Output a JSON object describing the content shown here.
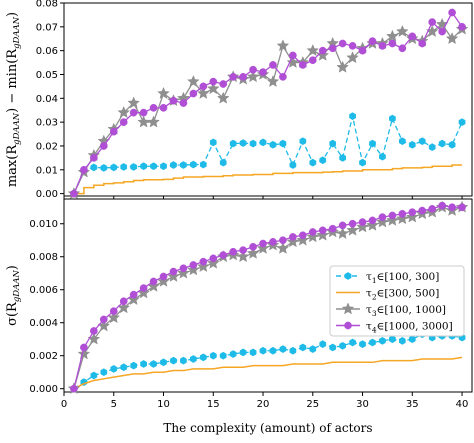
{
  "chart_data": [
    {
      "type": "line",
      "panel": "top",
      "xlabel": "",
      "ylabel_parts": [
        "max(R",
        "gDAAN",
        ") − min(R",
        "gDAAN",
        ")"
      ],
      "xlim": [
        0,
        41
      ],
      "ylim": [
        -0.001,
        0.08
      ],
      "yticks": [
        "0.00",
        "0.01",
        "0.02",
        "0.03",
        "0.04",
        "0.05",
        "0.06",
        "0.07",
        "0.08"
      ],
      "ytick_values": [
        0,
        0.01,
        0.02,
        0.03,
        0.04,
        0.05,
        0.06,
        0.07,
        0.08
      ],
      "x": [
        1,
        2,
        3,
        4,
        5,
        6,
        7,
        8,
        9,
        10,
        11,
        12,
        13,
        14,
        15,
        16,
        17,
        18,
        19,
        20,
        21,
        22,
        23,
        24,
        25,
        26,
        27,
        28,
        29,
        30,
        31,
        32,
        33,
        34,
        35,
        36,
        37,
        38,
        39,
        40
      ],
      "series": [
        {
          "key": "tau1",
          "color": "#1fbbe8",
          "marker": "hexagon",
          "dash": "5,3",
          "values": [
            0.0,
            0.01,
            0.011,
            0.0108,
            0.011,
            0.0112,
            0.0112,
            0.0115,
            0.0115,
            0.0115,
            0.012,
            0.012,
            0.0122,
            0.0122,
            0.0215,
            0.013,
            0.021,
            0.0212,
            0.021,
            0.0215,
            0.0205,
            0.021,
            0.012,
            0.022,
            0.013,
            0.014,
            0.021,
            0.015,
            0.0325,
            0.013,
            0.021,
            0.0155,
            0.0315,
            0.022,
            0.0205,
            0.022,
            0.0195,
            0.021,
            0.0205,
            0.03
          ]
        },
        {
          "key": "tau2",
          "color": "#f5a623",
          "marker": "none",
          "step": true,
          "values": [
            0.0,
            0.0025,
            0.0035,
            0.0042,
            0.0045,
            0.005,
            0.0055,
            0.0058,
            0.0058,
            0.006,
            0.0065,
            0.007,
            0.007,
            0.0072,
            0.0072,
            0.0075,
            0.0078,
            0.0078,
            0.008,
            0.008,
            0.0085,
            0.0085,
            0.0088,
            0.0088,
            0.0088,
            0.009,
            0.0092,
            0.0095,
            0.0095,
            0.01,
            0.01,
            0.01,
            0.0105,
            0.0108,
            0.0108,
            0.011,
            0.0115,
            0.0115,
            0.012,
            0.012
          ]
        },
        {
          "key": "tau3",
          "color": "#8f8f8f",
          "marker": "star",
          "values": [
            0.0,
            0.009,
            0.016,
            0.022,
            0.027,
            0.034,
            0.038,
            0.03,
            0.03,
            0.042,
            0.039,
            0.04,
            0.047,
            0.042,
            0.044,
            0.04,
            0.049,
            0.048,
            0.049,
            0.05,
            0.047,
            0.062,
            0.055,
            0.055,
            0.06,
            0.058,
            0.063,
            0.053,
            0.057,
            0.061,
            0.063,
            0.063,
            0.066,
            0.068,
            0.065,
            0.064,
            0.068,
            0.071,
            0.065,
            0.069
          ]
        },
        {
          "key": "tau4",
          "color": "#b04ed6",
          "marker": "circle",
          "values": [
            0.0,
            0.01,
            0.015,
            0.02,
            0.026,
            0.03,
            0.034,
            0.034,
            0.036,
            0.036,
            0.039,
            0.038,
            0.042,
            0.045,
            0.047,
            0.046,
            0.049,
            0.049,
            0.052,
            0.051,
            0.054,
            0.049,
            0.058,
            0.054,
            0.056,
            0.06,
            0.061,
            0.063,
            0.062,
            0.06,
            0.064,
            0.062,
            0.063,
            0.061,
            0.066,
            0.063,
            0.072,
            0.068,
            0.076,
            0.07
          ]
        }
      ]
    },
    {
      "type": "line",
      "panel": "bottom",
      "xlabel": "The complexity (amount) of actors",
      "ylabel_parts": [
        "σ(R",
        "gDAAN",
        ")"
      ],
      "xlim": [
        0,
        41
      ],
      "ylim": [
        -0.0002,
        0.0115
      ],
      "xticks": [
        "0",
        "5",
        "10",
        "15",
        "20",
        "25",
        "30",
        "35",
        "40"
      ],
      "xtick_values": [
        0,
        5,
        10,
        15,
        20,
        25,
        30,
        35,
        40
      ],
      "yticks": [
        "0.000",
        "0.002",
        "0.004",
        "0.006",
        "0.008",
        "0.010"
      ],
      "ytick_values": [
        0,
        0.002,
        0.004,
        0.006,
        0.008,
        0.01
      ],
      "x": [
        1,
        2,
        3,
        4,
        5,
        6,
        7,
        8,
        9,
        10,
        11,
        12,
        13,
        14,
        15,
        16,
        17,
        18,
        19,
        20,
        21,
        22,
        23,
        24,
        25,
        26,
        27,
        28,
        29,
        30,
        31,
        32,
        33,
        34,
        35,
        36,
        37,
        38,
        39,
        40
      ],
      "series": [
        {
          "key": "tau1",
          "color": "#1fbbe8",
          "marker": "hexagon",
          "dash": "5,3",
          "values": [
            0.0,
            0.0004,
            0.0008,
            0.001,
            0.0012,
            0.0013,
            0.0014,
            0.0015,
            0.0015,
            0.0016,
            0.0017,
            0.0017,
            0.0018,
            0.0019,
            0.002,
            0.002,
            0.0021,
            0.0022,
            0.0022,
            0.0023,
            0.0023,
            0.0024,
            0.0023,
            0.0025,
            0.0024,
            0.0027,
            0.0025,
            0.0026,
            0.0028,
            0.0027,
            0.0028,
            0.0029,
            0.003,
            0.0029,
            0.003,
            0.0033,
            0.0031,
            0.0032,
            0.0032,
            0.0031
          ]
        },
        {
          "key": "tau2",
          "color": "#f5a623",
          "marker": "none",
          "values": [
            0.0,
            0.0003,
            0.0005,
            0.0006,
            0.0007,
            0.0008,
            0.0009,
            0.0009,
            0.001,
            0.001,
            0.0011,
            0.0011,
            0.0012,
            0.0012,
            0.0012,
            0.0013,
            0.0013,
            0.0013,
            0.0014,
            0.0014,
            0.0014,
            0.0014,
            0.0015,
            0.0015,
            0.0015,
            0.0015,
            0.0016,
            0.0016,
            0.0016,
            0.0016,
            0.0016,
            0.0017,
            0.0017,
            0.0017,
            0.0017,
            0.0018,
            0.0018,
            0.0018,
            0.0018,
            0.0019
          ]
        },
        {
          "key": "tau3",
          "color": "#8f8f8f",
          "marker": "star",
          "values": [
            0.0,
            0.0021,
            0.003,
            0.0038,
            0.0043,
            0.0049,
            0.0054,
            0.0058,
            0.0062,
            0.0065,
            0.0068,
            0.007,
            0.0072,
            0.0074,
            0.0076,
            0.008,
            0.0081,
            0.008,
            0.0082,
            0.0085,
            0.0087,
            0.0085,
            0.0089,
            0.009,
            0.0092,
            0.0093,
            0.0095,
            0.0094,
            0.0096,
            0.0098,
            0.0099,
            0.0101,
            0.0102,
            0.0103,
            0.0104,
            0.0106,
            0.0107,
            0.011,
            0.0108,
            0.011
          ]
        },
        {
          "key": "tau4",
          "color": "#b04ed6",
          "marker": "circle",
          "values": [
            0.0,
            0.0025,
            0.0035,
            0.0042,
            0.0047,
            0.0053,
            0.0057,
            0.0061,
            0.0065,
            0.0068,
            0.0071,
            0.0073,
            0.0075,
            0.0077,
            0.0079,
            0.0081,
            0.0083,
            0.0084,
            0.0086,
            0.0088,
            0.0089,
            0.009,
            0.0092,
            0.0093,
            0.0095,
            0.0096,
            0.0097,
            0.0099,
            0.01,
            0.0101,
            0.0102,
            0.0104,
            0.0105,
            0.0106,
            0.0107,
            0.0108,
            0.0109,
            0.0111,
            0.011,
            0.011
          ]
        }
      ],
      "legend": {
        "placement": "right",
        "entries": [
          {
            "key": "tau1",
            "tau": "τ",
            "sub": "1",
            "range": "∈[100, 300]"
          },
          {
            "key": "tau2",
            "tau": "τ",
            "sub": "2",
            "range": "∈[300, 500]"
          },
          {
            "key": "tau3",
            "tau": "τ",
            "sub": "3",
            "range": "∈[100, 1000]"
          },
          {
            "key": "tau4",
            "tau": "τ",
            "sub": "4",
            "range": "∈[1000, 3000]"
          }
        ]
      }
    }
  ]
}
